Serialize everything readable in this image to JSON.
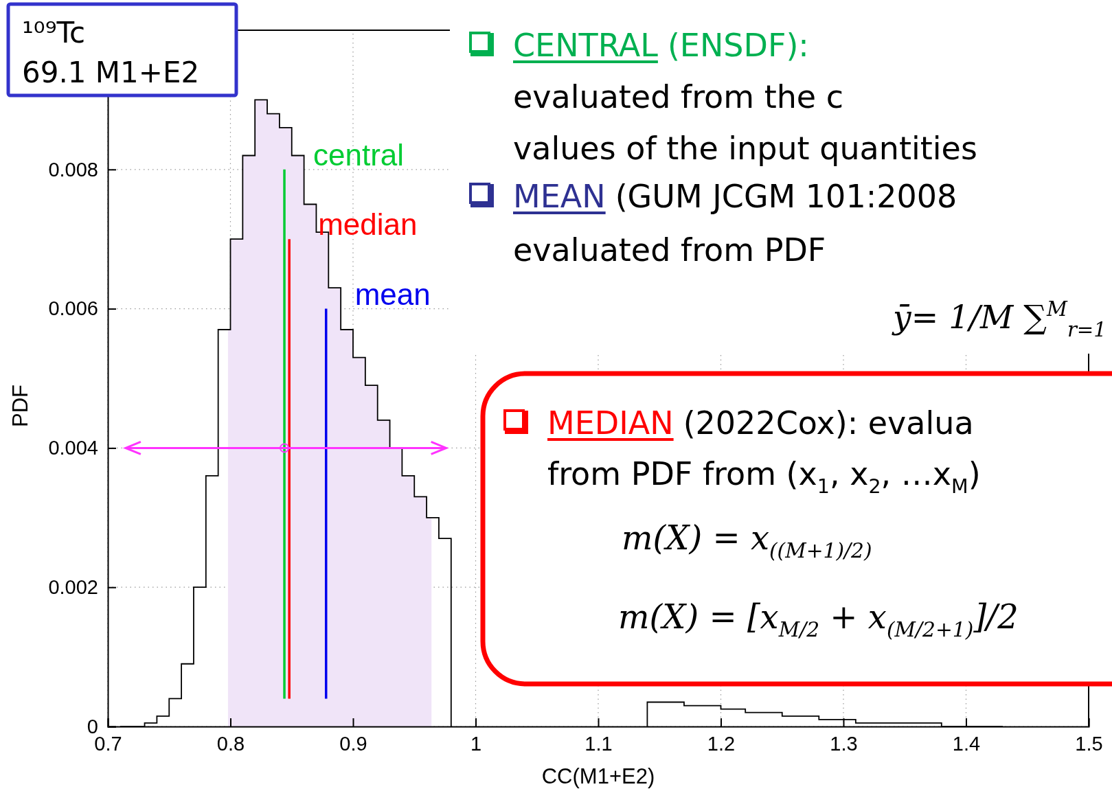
{
  "chart_data": {
    "type": "histogram",
    "title": "¹⁰⁹Tc",
    "subtitle": "69.1 M1+E2",
    "xlabel": "CC(M1+E2)",
    "ylabel": "PDF",
    "series": [
      {
        "color": "#000000",
        "bins": [
          0.71,
          0.72,
          0.73,
          0.74,
          0.75,
          0.76,
          0.77,
          0.78,
          0.79,
          0.8,
          0.81,
          0.82,
          0.83,
          0.84,
          0.85,
          0.86,
          0.87,
          0.88,
          0.89,
          0.9,
          0.91,
          0.92,
          0.93,
          0.94,
          0.95,
          0.96,
          0.97,
          0.98
        ],
        "values": [
          0,
          0,
          5e-05,
          0.00015,
          0.0004,
          0.0009,
          0.002,
          0.0036,
          0.0057,
          0.007,
          0.0082,
          0.009,
          0.0088,
          0.0086,
          0.0082,
          0.0075,
          0.0071,
          0.0063,
          0.0057,
          0.0053,
          0.0049,
          0.0044,
          0.004,
          0.0036,
          0.0033,
          0.003,
          0.0027
        ]
      },
      {
        "color": "#000000",
        "bins": [
          1.14,
          1.15,
          1.16,
          1.17,
          1.18,
          1.19,
          1.2,
          1.21,
          1.22,
          1.23,
          1.24,
          1.25,
          1.26,
          1.27,
          1.28,
          1.29,
          1.3,
          1.31,
          1.32,
          1.33,
          1.34,
          1.35,
          1.36,
          1.37,
          1.38,
          1.39,
          1.4,
          1.41,
          1.42,
          1.43
        ],
        "values": [
          0.00035,
          0.00035,
          0.00035,
          0.0003,
          0.0003,
          0.0003,
          0.00025,
          0.00025,
          0.0002,
          0.0002,
          0.0002,
          0.00015,
          0.00015,
          0.00015,
          0.0001,
          0.0001,
          0.0001,
          5e-05,
          5e-05,
          5e-05,
          5e-05,
          5e-05,
          5e-05,
          5e-05,
          0,
          0,
          0,
          0,
          0
        ]
      },
      {
        "name": "central",
        "type": "line",
        "color": "#00cc33",
        "x": [
          0.844,
          0.844
        ],
        "values": [
          0.0004,
          0.008
        ]
      },
      {
        "name": "median",
        "type": "line",
        "color": "#ff0000",
        "x": [
          0.848,
          0.848
        ],
        "values": [
          0.0004,
          0.007
        ]
      },
      {
        "name": "mean",
        "type": "line",
        "color": "#0000ee",
        "x": [
          0.878,
          0.878
        ],
        "values": [
          0.0004,
          0.006
        ]
      },
      {
        "type": "scatter",
        "color": "#ff33ff",
        "marker": "circle",
        "x": [
          0.844
        ],
        "values": [
          0.004
        ],
        "xerrors": [
          [
            0.7145,
            0.976
          ]
        ]
      }
    ],
    "bands": [
      {
        "axis": "x",
        "from": 0.798,
        "to": 0.964,
        "color": "#f0e4f8"
      }
    ],
    "xlim": [
      0.7,
      1.5
    ],
    "ylim": [
      0,
      0.01
    ],
    "xticks": [
      0.7,
      0.8,
      0.9,
      1,
      1.1,
      1.2,
      1.3,
      1.4,
      1.5
    ],
    "yticks": [
      0,
      0.002,
      0.004,
      0.006,
      0.008
    ],
    "grid": true,
    "annotations": [
      "CENTRAL",
      "(ENSDF):",
      "evaluated from the c",
      "values of the input quantities",
      "MEAN",
      "(GUM JCGM 101:2008",
      "evaluated from PDF",
      "ȳ= 1/M ∑$^{M}$$_{r=1}$",
      "MEDIAN",
      "(2022Cox): evalua",
      "from PDF from (x$_{1}$, x$_{2}$, …x$_{M}$)",
      "m(X) = x$_{((M+1)/2)}$",
      "m(X) = [x$_{M/2}$ + x$_{(M/2+1)}$]/2"
    ]
  }
}
